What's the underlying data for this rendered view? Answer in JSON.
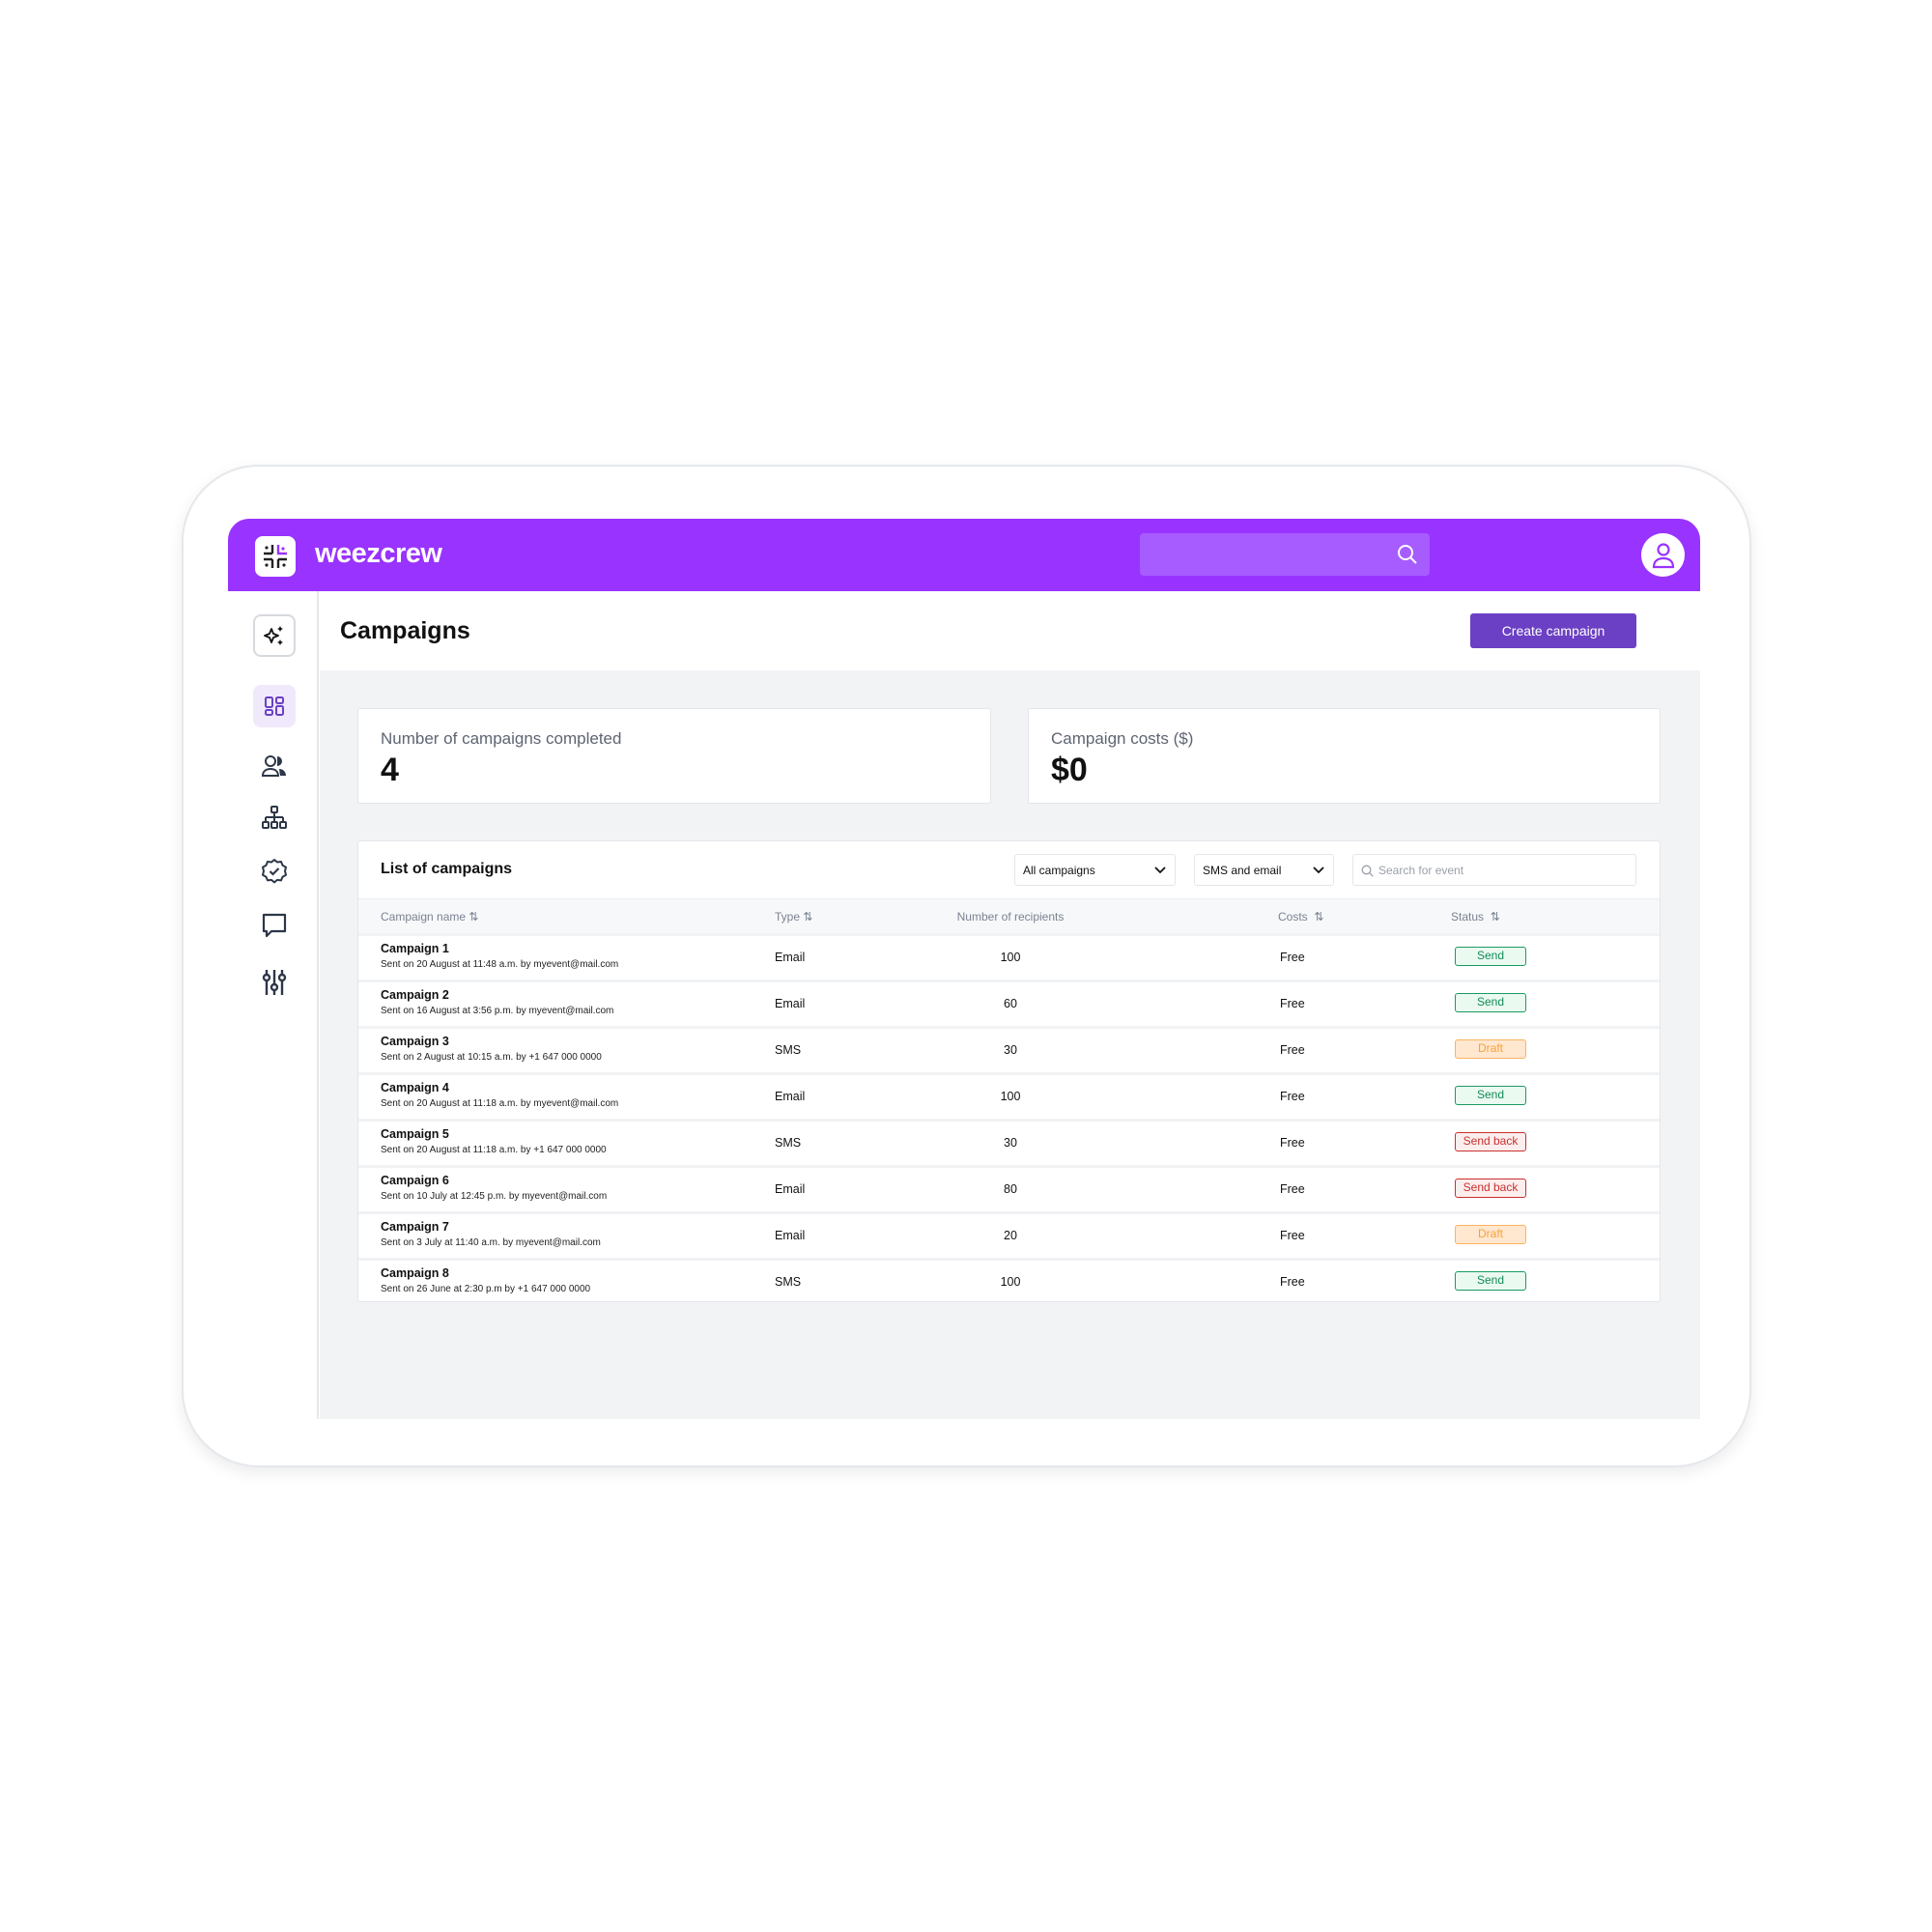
{
  "app": {
    "brand": "weezcrew",
    "colors": {
      "header": "#9933ff",
      "accent": "#6b40c4"
    }
  },
  "header": {
    "search_icon": "search-icon",
    "avatar_icon": "user-icon"
  },
  "sidebar": {
    "items": [
      {
        "icon": "sparkles-icon"
      },
      {
        "icon": "dashboard-icon",
        "active": true
      },
      {
        "icon": "users-icon"
      },
      {
        "icon": "hierarchy-icon"
      },
      {
        "icon": "badge-check-icon"
      },
      {
        "icon": "chat-icon"
      },
      {
        "icon": "sliders-icon"
      }
    ]
  },
  "page": {
    "title": "Campaigns",
    "create_label": "Create campaign"
  },
  "stats": [
    {
      "label": "Number of campaigns completed",
      "value": "4"
    },
    {
      "label": "Campaign costs ($)",
      "value": "$0"
    }
  ],
  "list": {
    "title": "List of campaigns",
    "filter1": "All campaigns",
    "filter2": "SMS and email",
    "search_placeholder": "Search for event",
    "columns": [
      "Campaign name",
      "Type",
      "Number of recipients",
      "Costs",
      "Status"
    ],
    "rows": [
      {
        "name": "Campaign 1",
        "sub": "Sent on 20 August at 11:48 a.m. by myevent@mail.com",
        "type": "Email",
        "recipients": "100",
        "cost": "Free",
        "status": "Send"
      },
      {
        "name": "Campaign 2",
        "sub": "Sent on 16 August at 3:56 p.m. by myevent@mail.com",
        "type": "Email",
        "recipients": "60",
        "cost": "Free",
        "status": "Send"
      },
      {
        "name": "Campaign 3",
        "sub": "Sent on 2 August at 10:15 a.m. by +1 647 000 0000",
        "type": "SMS",
        "recipients": "30",
        "cost": "Free",
        "status": "Draft"
      },
      {
        "name": "Campaign 4",
        "sub": "Sent on 20 August at 11:18 a.m. by myevent@mail.com",
        "type": "Email",
        "recipients": "100",
        "cost": "Free",
        "status": "Send"
      },
      {
        "name": "Campaign 5",
        "sub": "Sent on 20 August at 11:18 a.m. by +1 647 000 0000",
        "type": "SMS",
        "recipients": "30",
        "cost": "Free",
        "status": "Send back"
      },
      {
        "name": "Campaign 6",
        "sub": "Sent on 10 July at 12:45 p.m. by myevent@mail.com",
        "type": "Email",
        "recipients": "80",
        "cost": "Free",
        "status": "Send back"
      },
      {
        "name": "Campaign 7",
        "sub": "Sent on 3 July at 11:40 a.m. by myevent@mail.com",
        "type": "Email",
        "recipients": "20",
        "cost": "Free",
        "status": "Draft"
      },
      {
        "name": "Campaign 8",
        "sub": "Sent on 26 June at 2:30 p.m by +1 647 000 0000",
        "type": "SMS",
        "recipients": "100",
        "cost": "Free",
        "status": "Send"
      }
    ]
  }
}
